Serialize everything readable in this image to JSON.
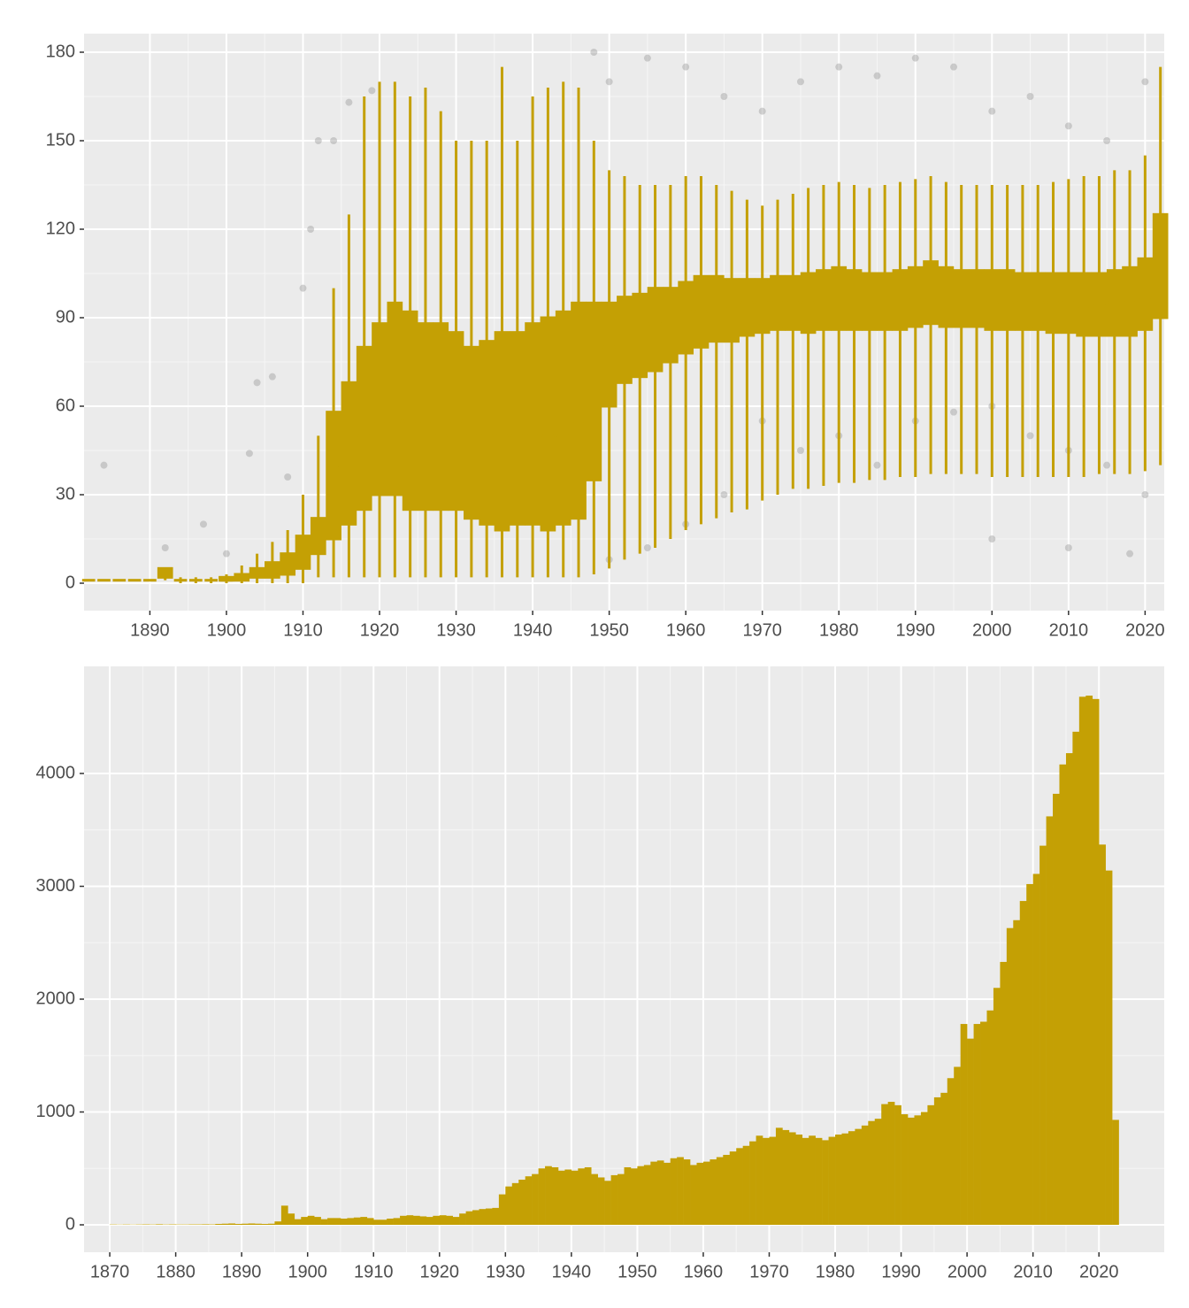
{
  "chart_data": [
    {
      "type": "boxplot",
      "color": "#c4a004",
      "outlier_color": "#9e9e9e",
      "xlim": [
        1881.4,
        2022.5
      ],
      "ylim": [
        -9.3,
        186.3
      ],
      "xticks": [
        1890,
        1900,
        1910,
        1920,
        1930,
        1940,
        1950,
        1960,
        1970,
        1980,
        1990,
        2000,
        2010,
        2020
      ],
      "yticks": [
        0,
        30,
        60,
        90,
        120,
        150,
        180
      ],
      "grid": true,
      "x": [
        1882,
        1884,
        1886,
        1888,
        1890,
        1892,
        1894,
        1896,
        1898,
        1900,
        1902,
        1904,
        1906,
        1908,
        1910,
        1912,
        1914,
        1916,
        1918,
        1920,
        1922,
        1924,
        1926,
        1928,
        1930,
        1932,
        1934,
        1936,
        1938,
        1940,
        1942,
        1944,
        1946,
        1948,
        1950,
        1952,
        1954,
        1956,
        1958,
        1960,
        1962,
        1964,
        1966,
        1968,
        1970,
        1972,
        1974,
        1976,
        1978,
        1980,
        1982,
        1984,
        1986,
        1988,
        1990,
        1992,
        1994,
        1996,
        1998,
        2000,
        2002,
        2004,
        2006,
        2008,
        2010,
        2012,
        2014,
        2016,
        2018,
        2020,
        2022
      ],
      "low": [
        1,
        1,
        1,
        1,
        1,
        1,
        0,
        0,
        0,
        0,
        0,
        0,
        0,
        0,
        0,
        2,
        2,
        2,
        2,
        2,
        2,
        2,
        2,
        2,
        2,
        2,
        2,
        2,
        2,
        2,
        2,
        2,
        2,
        3,
        5,
        8,
        10,
        12,
        15,
        18,
        20,
        22,
        24,
        25,
        28,
        30,
        32,
        32,
        33,
        34,
        34,
        35,
        35,
        36,
        36,
        37,
        37,
        37,
        37,
        36,
        36,
        36,
        36,
        36,
        36,
        36,
        37,
        37,
        37,
        38,
        40
      ],
      "q1": [
        1,
        1,
        1,
        1,
        1,
        2,
        1,
        1,
        1,
        1,
        1,
        2,
        2,
        3,
        5,
        10,
        15,
        20,
        25,
        30,
        30,
        25,
        25,
        25,
        25,
        22,
        20,
        18,
        20,
        20,
        18,
        20,
        22,
        35,
        60,
        68,
        70,
        72,
        75,
        78,
        80,
        82,
        82,
        84,
        85,
        86,
        86,
        85,
        86,
        86,
        86,
        86,
        86,
        86,
        87,
        88,
        87,
        87,
        87,
        86,
        86,
        86,
        86,
        85,
        85,
        84,
        84,
        84,
        84,
        86,
        90
      ],
      "median": [
        1,
        1,
        1,
        1,
        1,
        3,
        1,
        1,
        1,
        1,
        2,
        3,
        4,
        6,
        10,
        15,
        40,
        45,
        50,
        55,
        55,
        55,
        55,
        50,
        55,
        50,
        50,
        50,
        50,
        50,
        50,
        50,
        55,
        65,
        80,
        85,
        87,
        88,
        90,
        92,
        92,
        93,
        94,
        95,
        95,
        95,
        95,
        95,
        96,
        96,
        96,
        96,
        96,
        96,
        97,
        97,
        96,
        96,
        96,
        95,
        95,
        95,
        95,
        95,
        95,
        94,
        94,
        95,
        95,
        97,
        105
      ],
      "q3": [
        1,
        1,
        1,
        1,
        1,
        5,
        1,
        1,
        1,
        2,
        3,
        5,
        7,
        10,
        16,
        22,
        58,
        68,
        80,
        88,
        95,
        92,
        88,
        88,
        85,
        80,
        82,
        85,
        85,
        88,
        90,
        92,
        95,
        95,
        95,
        97,
        98,
        100,
        100,
        102,
        104,
        104,
        103,
        103,
        103,
        104,
        104,
        105,
        106,
        107,
        106,
        105,
        105,
        106,
        107,
        109,
        107,
        106,
        106,
        106,
        106,
        105,
        105,
        105,
        105,
        105,
        105,
        106,
        107,
        110,
        125
      ],
      "high": [
        1,
        1,
        1,
        1,
        1,
        5,
        2,
        2,
        2,
        3,
        6,
        10,
        14,
        18,
        30,
        50,
        100,
        125,
        165,
        170,
        170,
        165,
        168,
        160,
        150,
        150,
        150,
        175,
        150,
        165,
        168,
        170,
        168,
        150,
        140,
        138,
        135,
        135,
        135,
        138,
        138,
        135,
        133,
        130,
        128,
        130,
        132,
        134,
        135,
        136,
        135,
        134,
        135,
        136,
        137,
        138,
        136,
        135,
        135,
        135,
        135,
        135,
        135,
        136,
        137,
        138,
        138,
        140,
        140,
        145,
        175
      ],
      "outliers": {
        "x": [
          1884,
          1892,
          1897,
          1900,
          1903,
          1904,
          1906,
          1908,
          1910,
          1911,
          1912,
          1914,
          1916,
          1919,
          1948,
          1950,
          1955,
          1960,
          1965,
          1970,
          1975,
          1980,
          1985,
          1990,
          1995,
          2000,
          2005,
          2010,
          2015,
          2020,
          1950,
          1955,
          1960,
          1965,
          1970,
          1975,
          1980,
          1985,
          1990,
          1995,
          2000,
          2005,
          2010,
          2015,
          2020,
          2000,
          2010,
          2018
        ],
        "y": [
          40,
          12,
          20,
          10,
          44,
          68,
          70,
          36,
          100,
          120,
          150,
          150,
          163,
          167,
          180,
          170,
          178,
          175,
          165,
          160,
          170,
          175,
          172,
          178,
          175,
          160,
          165,
          155,
          150,
          170,
          8,
          12,
          20,
          30,
          55,
          45,
          50,
          40,
          55,
          58,
          60,
          50,
          45,
          40,
          30,
          15,
          12,
          10
        ]
      }
    },
    {
      "type": "histogram",
      "color": "#c4a004",
      "xlim": [
        1866.1,
        2029.9
      ],
      "ylim": [
        -243,
        4949
      ],
      "xticks": [
        1870,
        1880,
        1890,
        1900,
        1910,
        1920,
        1930,
        1940,
        1950,
        1960,
        1970,
        1980,
        1990,
        2000,
        2010,
        2020
      ],
      "yticks": [
        0,
        1000,
        2000,
        3000,
        4000
      ],
      "grid": true,
      "bins": [
        1870,
        1871,
        1872,
        1873,
        1874,
        1875,
        1876,
        1877,
        1878,
        1879,
        1880,
        1881,
        1882,
        1883,
        1884,
        1885,
        1886,
        1887,
        1888,
        1889,
        1890,
        1891,
        1892,
        1893,
        1894,
        1895,
        1896,
        1897,
        1898,
        1899,
        1900,
        1901,
        1902,
        1903,
        1904,
        1905,
        1906,
        1907,
        1908,
        1909,
        1910,
        1911,
        1912,
        1913,
        1914,
        1915,
        1916,
        1917,
        1918,
        1919,
        1920,
        1921,
        1922,
        1923,
        1924,
        1925,
        1926,
        1927,
        1928,
        1929,
        1930,
        1931,
        1932,
        1933,
        1934,
        1935,
        1936,
        1937,
        1938,
        1939,
        1940,
        1941,
        1942,
        1943,
        1944,
        1945,
        1946,
        1947,
        1948,
        1949,
        1950,
        1951,
        1952,
        1953,
        1954,
        1955,
        1956,
        1957,
        1958,
        1959,
        1960,
        1961,
        1962,
        1963,
        1964,
        1965,
        1966,
        1967,
        1968,
        1969,
        1970,
        1971,
        1972,
        1973,
        1974,
        1975,
        1976,
        1977,
        1978,
        1979,
        1980,
        1981,
        1982,
        1983,
        1984,
        1985,
        1986,
        1987,
        1988,
        1989,
        1990,
        1991,
        1992,
        1993,
        1994,
        1995,
        1996,
        1997,
        1998,
        1999,
        2000,
        2001,
        2002,
        2003,
        2004,
        2005,
        2006,
        2007,
        2008,
        2009,
        2010,
        2011,
        2012,
        2013,
        2014,
        2015,
        2016,
        2017,
        2018,
        2019,
        2020,
        2021,
        2022,
        2023
      ],
      "values": [
        3,
        2,
        3,
        2,
        3,
        4,
        3,
        5,
        3,
        4,
        3,
        3,
        4,
        4,
        5,
        4,
        8,
        10,
        12,
        8,
        10,
        12,
        10,
        8,
        10,
        30,
        170,
        100,
        50,
        70,
        80,
        70,
        50,
        60,
        60,
        55,
        60,
        65,
        70,
        60,
        45,
        45,
        55,
        60,
        80,
        85,
        80,
        75,
        70,
        80,
        85,
        80,
        70,
        100,
        120,
        130,
        140,
        145,
        150,
        270,
        340,
        370,
        400,
        430,
        450,
        500,
        520,
        510,
        480,
        490,
        480,
        500,
        510,
        450,
        420,
        390,
        440,
        450,
        510,
        500,
        520,
        530,
        560,
        570,
        550,
        590,
        600,
        580,
        530,
        550,
        560,
        580,
        600,
        620,
        650,
        680,
        700,
        740,
        790,
        770,
        780,
        860,
        840,
        820,
        800,
        770,
        790,
        770,
        750,
        780,
        800,
        810,
        830,
        850,
        880,
        920,
        940,
        1070,
        1090,
        1060,
        980,
        950,
        970,
        1000,
        1060,
        1130,
        1170,
        1300,
        1400,
        1780,
        1650,
        1780,
        1800,
        1900,
        2100,
        2330,
        2630,
        2700,
        2870,
        3020,
        3110,
        3360,
        3620,
        3820,
        4080,
        4180,
        4370,
        4680,
        4690,
        4660,
        3370,
        3140,
        930
      ]
    }
  ]
}
